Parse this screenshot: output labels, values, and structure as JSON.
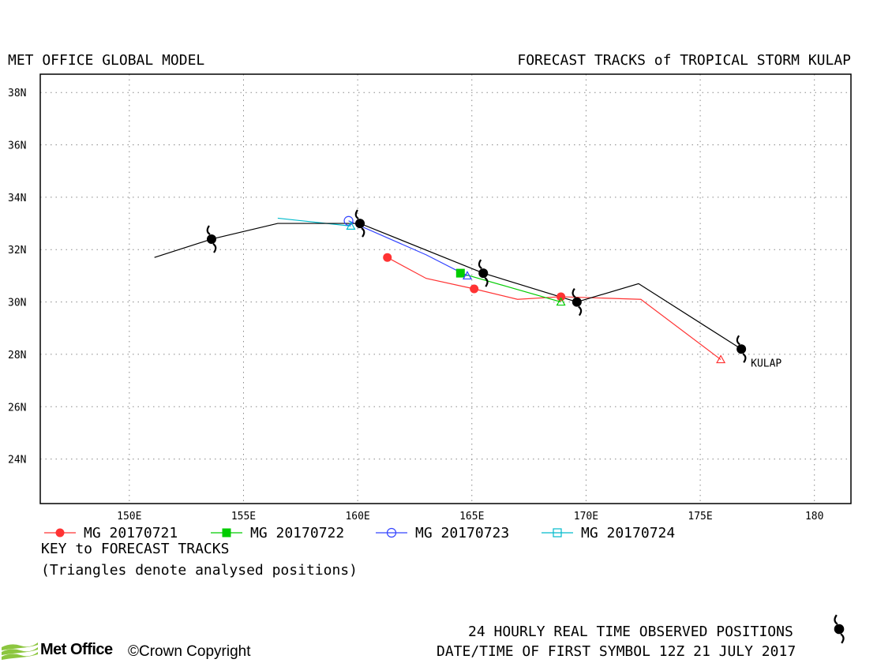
{
  "header": {
    "left_title": "MET OFFICE GLOBAL MODEL",
    "right_title": "FORECAST TRACKS of TROPICAL STORM KULAP"
  },
  "key": {
    "title": "KEY to FORECAST TRACKS",
    "note": "(Triangles denote analysed positions)"
  },
  "footer": {
    "observed_label": "24 HOURLY REAL TIME OBSERVED POSITIONS",
    "first_symbol_label": "DATE/TIME OF FIRST SYMBOL 12Z 21 JULY 2017",
    "logo_text": "Met Office",
    "copyright": "©Crown Copyright"
  },
  "colors": {
    "observed": "#000000",
    "mg20170721": "#ff3333",
    "mg20170722": "#00cc00",
    "mg20170723": "#3344ff",
    "mg20170724": "#00bbcc",
    "grid": "#888888"
  },
  "chart_data": {
    "type": "scatter",
    "x_ticks": [
      150,
      155,
      160,
      165,
      170,
      175,
      180
    ],
    "x_tick_labels": [
      "150E",
      "155E",
      "160E",
      "165E",
      "170E",
      "175E",
      "180"
    ],
    "y_ticks": [
      24,
      26,
      28,
      30,
      32,
      34,
      36,
      38
    ],
    "y_tick_labels": [
      "24N",
      "26N",
      "28N",
      "30N",
      "32N",
      "34N",
      "36N",
      "38N"
    ],
    "xlim": [
      146.1,
      181.6
    ],
    "ylim": [
      22.3,
      38.7
    ],
    "grid": true,
    "storm_label": "KULAP",
    "observed_track": {
      "name": "KULAP",
      "line": [
        [
          151.1,
          31.7
        ],
        [
          153.6,
          32.4
        ],
        [
          156.5,
          33.0
        ],
        [
          160.1,
          33.0
        ],
        [
          165.5,
          31.1
        ],
        [
          169.6,
          30.0
        ],
        [
          172.3,
          30.7
        ],
        [
          176.8,
          28.2
        ]
      ],
      "symbols": [
        [
          153.6,
          32.4
        ],
        [
          160.1,
          33.0
        ],
        [
          165.5,
          31.1
        ],
        [
          169.6,
          30.0
        ],
        [
          176.8,
          28.2
        ]
      ]
    },
    "series": [
      {
        "name": "MG 20170721",
        "marker": "filled-circle",
        "color": "#ff3333",
        "points": [
          [
            161.3,
            31.7
          ],
          [
            163.0,
            30.9
          ],
          [
            165.1,
            30.5
          ],
          [
            167.0,
            30.1
          ],
          [
            168.9,
            30.2
          ],
          [
            172.4,
            30.1
          ],
          [
            175.9,
            27.8
          ]
        ],
        "markers": [
          [
            161.3,
            31.7
          ],
          [
            165.1,
            30.5
          ],
          [
            168.9,
            30.2
          ]
        ],
        "analysed": [
          175.9,
          27.8
        ]
      },
      {
        "name": "MG 20170722",
        "marker": "filled-square",
        "color": "#00cc00",
        "points": [
          [
            164.5,
            31.1
          ],
          [
            166.5,
            30.6
          ],
          [
            168.9,
            30.0
          ]
        ],
        "markers": [
          [
            164.5,
            31.1
          ]
        ],
        "analysed": [
          168.9,
          30.0
        ]
      },
      {
        "name": "MG 20170723",
        "marker": "open-circle",
        "color": "#3344ff",
        "points": [
          [
            159.6,
            33.1
          ],
          [
            163.0,
            31.8
          ],
          [
            164.8,
            31.0
          ]
        ],
        "markers": [
          [
            159.6,
            33.1
          ]
        ],
        "analysed": [
          164.8,
          31.0
        ]
      },
      {
        "name": "MG 20170724",
        "marker": "open-square",
        "color": "#00bbcc",
        "points": [
          [
            156.5,
            33.2
          ],
          [
            159.7,
            32.9
          ]
        ],
        "markers": [],
        "analysed": [
          159.7,
          32.9
        ]
      }
    ]
  }
}
